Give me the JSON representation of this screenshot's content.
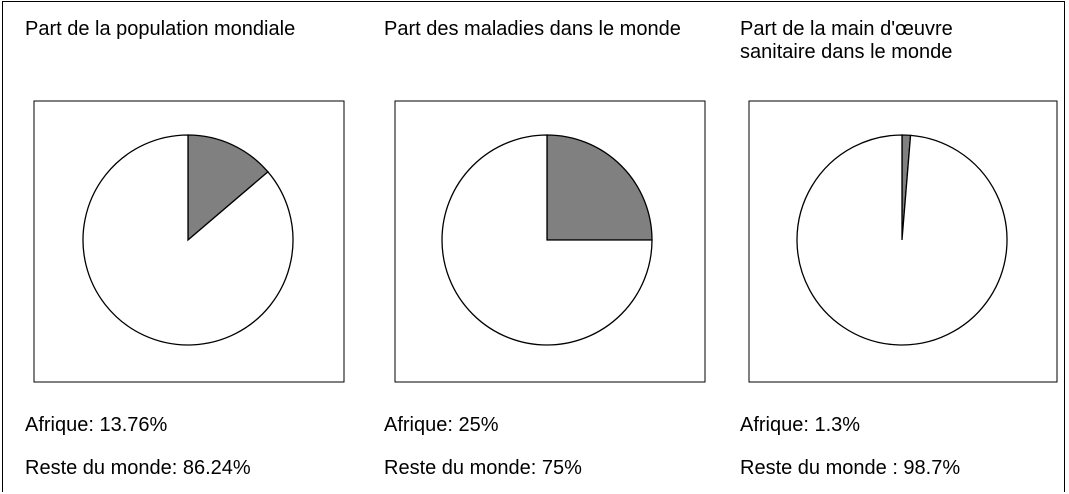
{
  "chart_data": [
    {
      "type": "pie",
      "title": "Part de la population mondiale",
      "values": [
        13.76,
        86.24
      ],
      "value_labels": [
        "Afrique: 13.76%",
        "Reste du monde: 86.24%"
      ],
      "colors": [
        "#808080",
        "#ffffff"
      ]
    },
    {
      "type": "pie",
      "title": "Part des maladies dans le monde",
      "values": [
        25,
        75
      ],
      "value_labels": [
        "Afrique: 25%",
        "Reste du monde: 75%"
      ],
      "colors": [
        "#808080",
        "#ffffff"
      ]
    },
    {
      "type": "pie",
      "title": "Part de la main d'œuvre sanitaire dans le monde",
      "values": [
        1.3,
        98.7
      ],
      "value_labels": [
        "Afrique: 1.3%",
        "Reste du monde : 98.7%"
      ],
      "colors": [
        "#808080",
        "#ffffff"
      ]
    }
  ]
}
